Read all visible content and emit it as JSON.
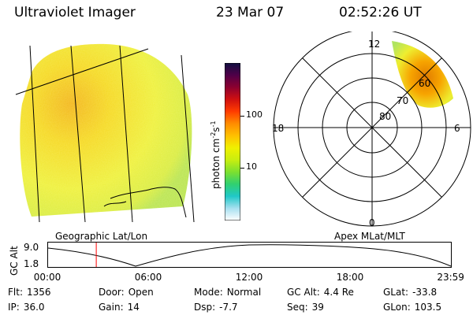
{
  "header": {
    "title": "Ultraviolet Imager",
    "date": "23 Mar 07",
    "time": "02:52:26 UT"
  },
  "colorbar": {
    "label": "photon cm",
    "label_sup1": "-2",
    "label_s": "s",
    "label_sup2": "-1",
    "ticks": [
      {
        "label": "100",
        "value": 100
      },
      {
        "label": "10",
        "value": 10
      }
    ],
    "colors": [
      "#101040",
      "#500048",
      "#8c0030",
      "#d01010",
      "#ff3c00",
      "#ff8c00",
      "#ffc000",
      "#f0f000",
      "#c8ee10",
      "#7ce030",
      "#30d070",
      "#20c8c8",
      "#a8e0f0",
      "#ffffff"
    ]
  },
  "polar": {
    "mlt_labels": {
      "top": "12",
      "left": "18",
      "right": "6",
      "bottom": "0"
    },
    "lat_labels": [
      "80",
      "70",
      "60"
    ]
  },
  "captions": {
    "left": "Geographic Lat/Lon",
    "right": "Apex MLat/MLT"
  },
  "altplot": {
    "ylabel": "GC Alt",
    "yticks": [
      "9.0",
      "1.8"
    ],
    "xticks": [
      "00:00",
      "06:00",
      "12:00",
      "18:00",
      "23:59"
    ],
    "marker_time_h": 2.87,
    "line_color": "#ff0000"
  },
  "info": {
    "row1": [
      {
        "key": "Flt:",
        "value": "1356"
      },
      {
        "key": "Door:",
        "value": "Open"
      },
      {
        "key": "Mode:",
        "value": "Normal"
      },
      {
        "key": "GC Alt:",
        "value": "4.4 Re"
      },
      {
        "key": "GLat:",
        "value": "-33.8"
      }
    ],
    "row2": [
      {
        "key": "IP:",
        "value": "36.0"
      },
      {
        "key": "Gain:",
        "value": "14"
      },
      {
        "key": "Dsp:",
        "value": "-7.7"
      },
      {
        "key": "Seq:",
        "value": "39"
      },
      {
        "key": "GLon:",
        "value": "103.5"
      }
    ]
  }
}
